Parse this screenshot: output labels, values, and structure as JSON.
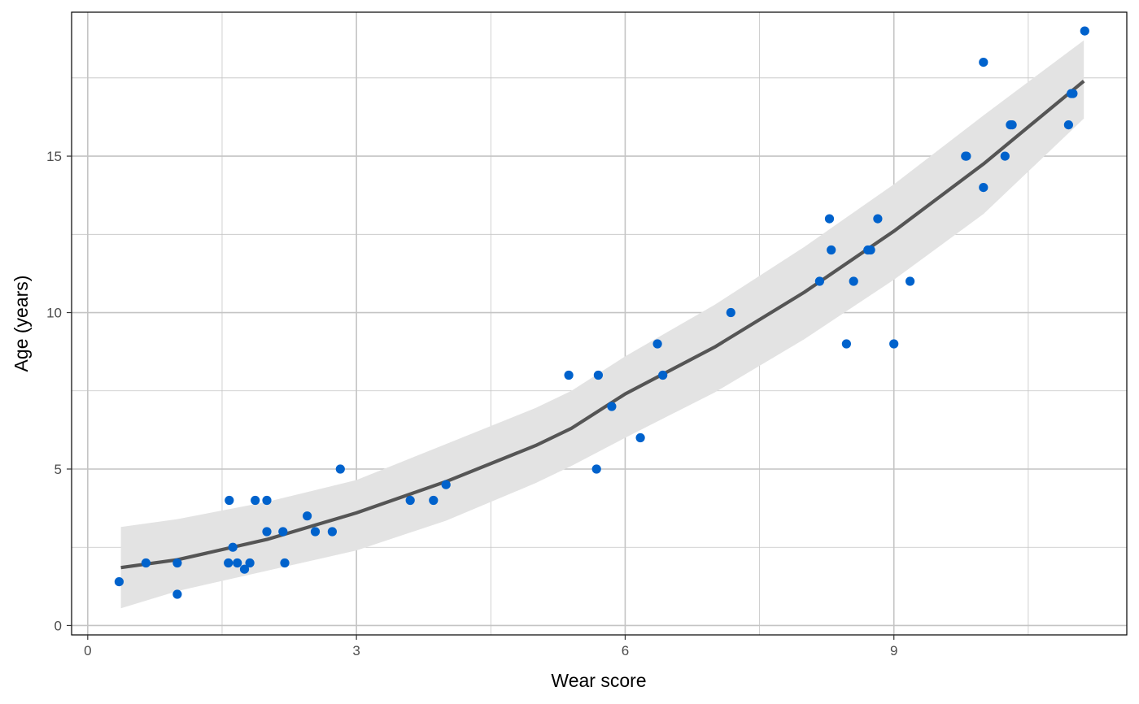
{
  "chart_data": {
    "type": "scatter",
    "title": "",
    "xlabel": "Wear score",
    "ylabel": "Age (years)",
    "xlim": [
      -0.18,
      11.6
    ],
    "ylim": [
      -0.3,
      19.6
    ],
    "x_ticks": [
      0,
      3,
      6,
      9
    ],
    "x_tick_labels": [
      "0",
      "3",
      "6",
      "9"
    ],
    "y_ticks": [
      0,
      5,
      10,
      15
    ],
    "y_tick_labels": [
      "0",
      "5",
      "10",
      "15"
    ],
    "x_minor_ticks": [
      1.5,
      4.5,
      7.5,
      10.5
    ],
    "y_minor_ticks": [
      2.5,
      7.5,
      12.5,
      17.5
    ],
    "grid": true,
    "legend": "none",
    "colors": {
      "points": "#0062cc",
      "fit_line": "#555555",
      "ribbon": "#e3e3e3",
      "grid": "#c4c4c4",
      "panel_border": "#000000"
    },
    "points": [
      {
        "x": 0.35,
        "y": 1.4
      },
      {
        "x": 0.65,
        "y": 2
      },
      {
        "x": 1.0,
        "y": 2
      },
      {
        "x": 1.0,
        "y": 1
      },
      {
        "x": 1.57,
        "y": 2
      },
      {
        "x": 1.58,
        "y": 4
      },
      {
        "x": 1.62,
        "y": 2.5
      },
      {
        "x": 1.67,
        "y": 2
      },
      {
        "x": 1.75,
        "y": 1.8
      },
      {
        "x": 1.81,
        "y": 2
      },
      {
        "x": 1.87,
        "y": 4
      },
      {
        "x": 2.0,
        "y": 3
      },
      {
        "x": 2.0,
        "y": 4
      },
      {
        "x": 2.18,
        "y": 3
      },
      {
        "x": 2.2,
        "y": 2
      },
      {
        "x": 2.45,
        "y": 3.5
      },
      {
        "x": 2.54,
        "y": 3
      },
      {
        "x": 2.73,
        "y": 3
      },
      {
        "x": 2.82,
        "y": 5
      },
      {
        "x": 3.6,
        "y": 4
      },
      {
        "x": 3.86,
        "y": 4
      },
      {
        "x": 4.0,
        "y": 4.5
      },
      {
        "x": 5.37,
        "y": 8
      },
      {
        "x": 5.68,
        "y": 5
      },
      {
        "x": 5.7,
        "y": 8
      },
      {
        "x": 5.85,
        "y": 7
      },
      {
        "x": 6.17,
        "y": 6
      },
      {
        "x": 6.36,
        "y": 9
      },
      {
        "x": 6.42,
        "y": 8
      },
      {
        "x": 7.18,
        "y": 10
      },
      {
        "x": 8.17,
        "y": 11
      },
      {
        "x": 8.28,
        "y": 13
      },
      {
        "x": 8.3,
        "y": 12
      },
      {
        "x": 8.47,
        "y": 9
      },
      {
        "x": 8.55,
        "y": 11
      },
      {
        "x": 8.71,
        "y": 12
      },
      {
        "x": 8.74,
        "y": 12
      },
      {
        "x": 8.82,
        "y": 13
      },
      {
        "x": 9.0,
        "y": 9
      },
      {
        "x": 9.18,
        "y": 11
      },
      {
        "x": 9.8,
        "y": 15
      },
      {
        "x": 9.81,
        "y": 15
      },
      {
        "x": 10.0,
        "y": 18
      },
      {
        "x": 10.0,
        "y": 14
      },
      {
        "x": 10.24,
        "y": 15
      },
      {
        "x": 10.3,
        "y": 16
      },
      {
        "x": 10.32,
        "y": 16
      },
      {
        "x": 10.95,
        "y": 16
      },
      {
        "x": 10.98,
        "y": 17
      },
      {
        "x": 11.0,
        "y": 17
      },
      {
        "x": 11.13,
        "y": 19
      }
    ],
    "fit": {
      "x": [
        0.37,
        1.0,
        2.0,
        3.0,
        4.0,
        5.0,
        5.4,
        6.0,
        7.0,
        8.0,
        9.0,
        10.0,
        11.12
      ],
      "y": [
        1.85,
        2.1,
        2.75,
        3.6,
        4.6,
        5.75,
        6.3,
        7.4,
        8.9,
        10.65,
        12.6,
        14.75,
        17.4
      ],
      "lower": [
        0.55,
        1.1,
        1.75,
        2.4,
        3.35,
        4.55,
        5.1,
        6.0,
        7.45,
        9.15,
        11.05,
        13.15,
        16.2
      ],
      "upper": [
        3.15,
        3.4,
        3.95,
        4.65,
        5.8,
        6.95,
        7.5,
        8.6,
        10.25,
        12.1,
        14.1,
        16.3,
        18.7
      ]
    }
  }
}
